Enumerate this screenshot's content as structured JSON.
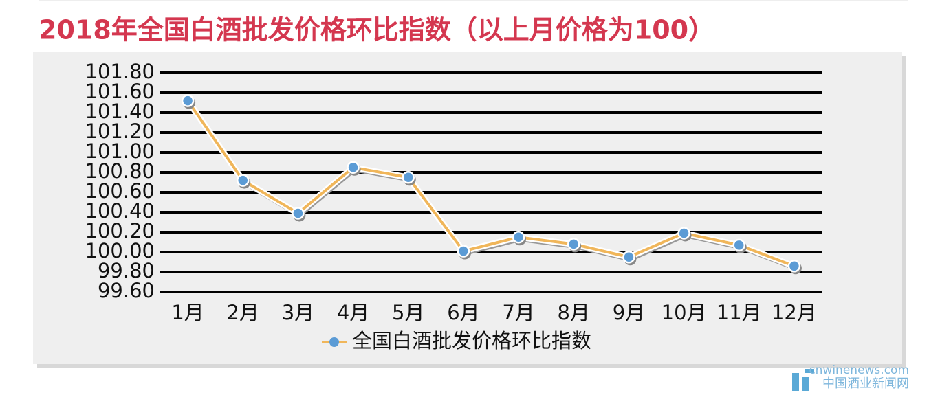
{
  "chart_data": {
    "type": "line",
    "title": "2018年全国白酒批发价格环比指数（以上月价格为100）",
    "categories": [
      "1月",
      "2月",
      "3月",
      "4月",
      "5月",
      "6月",
      "7月",
      "8月",
      "9月",
      "10月",
      "11月",
      "12月"
    ],
    "series": [
      {
        "name": "全国白酒批发价格环比指数",
        "color": "#f0b65a",
        "marker_color": "#5b9bd5",
        "values": [
          101.52,
          100.72,
          100.39,
          100.85,
          100.75,
          100.01,
          100.15,
          100.08,
          99.95,
          100.19,
          100.07,
          99.86
        ]
      }
    ],
    "ylim": [
      99.6,
      101.8
    ],
    "yticks": [
      {
        "value": 99.6,
        "label": "99.60"
      },
      {
        "value": 99.8,
        "label": "99.80"
      },
      {
        "value": 100,
        "label": "100.00"
      },
      {
        "value": 100.2,
        "label": "100.20"
      },
      {
        "value": 100.4,
        "label": "100.40"
      },
      {
        "value": 100.6,
        "label": "100.60"
      },
      {
        "value": 100.8,
        "label": "100.80"
      },
      {
        "value": 101,
        "label": "101.00"
      },
      {
        "value": 101.2,
        "label": "101.20"
      },
      {
        "value": 101.4,
        "label": "101.40"
      },
      {
        "value": 101.6,
        "label": "101.60"
      },
      {
        "value": 101.8,
        "label": "101.80"
      }
    ],
    "grid": true,
    "legend": "bottom",
    "watermark": {
      "site": "cnwinenews.com",
      "name": "中国酒业新闻网"
    }
  }
}
